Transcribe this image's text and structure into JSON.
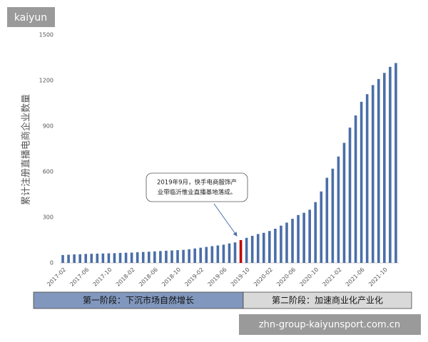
{
  "chart_data": {
    "type": "bar",
    "y_label": "累计注册直播电商企业数量",
    "categories": [
      "2017-02",
      null,
      null,
      null,
      "2017-06",
      null,
      null,
      null,
      "2017-10",
      null,
      null,
      null,
      "2018-02",
      null,
      null,
      null,
      "2018-06",
      null,
      null,
      null,
      "2018-10",
      null,
      null,
      null,
      "2019-02",
      null,
      null,
      null,
      "2019-06",
      null,
      null,
      null,
      "2019-10",
      null,
      null,
      null,
      "2020-02",
      null,
      null,
      null,
      "2020-06",
      null,
      null,
      null,
      "2020-10",
      null,
      null,
      null,
      "2021-02",
      null,
      null,
      null,
      "2021-06",
      null,
      null,
      null,
      "2021-10",
      null,
      null
    ],
    "values": [
      52,
      54,
      56,
      57,
      59,
      60,
      61,
      62,
      63,
      64,
      66,
      67,
      68,
      70,
      72,
      74,
      76,
      78,
      80,
      82,
      84,
      86,
      90,
      95,
      100,
      105,
      110,
      115,
      120,
      128,
      135,
      150,
      165,
      178,
      190,
      198,
      210,
      225,
      245,
      265,
      290,
      315,
      330,
      350,
      400,
      470,
      560,
      620,
      700,
      790,
      890,
      970,
      1060,
      1110,
      1170,
      1210,
      1250,
      1290,
      1315
    ],
    "color": "#4a6ea8",
    "highlight_index": 31,
    "highlight_color": "#c00000",
    "ylim": [
      0,
      1500
    ],
    "yticks": [
      0,
      300,
      600,
      900,
      1200,
      1500
    ],
    "annotation": [
      "2019年9月，快手电商服饰产",
      "业带临沂惟业直播基地落成。"
    ],
    "phases": [
      "第一阶段：下沉市场自然增长",
      "第二阶段：加速商业化产业化"
    ],
    "watermarks": [
      "kaiyun",
      "zhn-group-kaiyunsport.com.cn"
    ]
  }
}
